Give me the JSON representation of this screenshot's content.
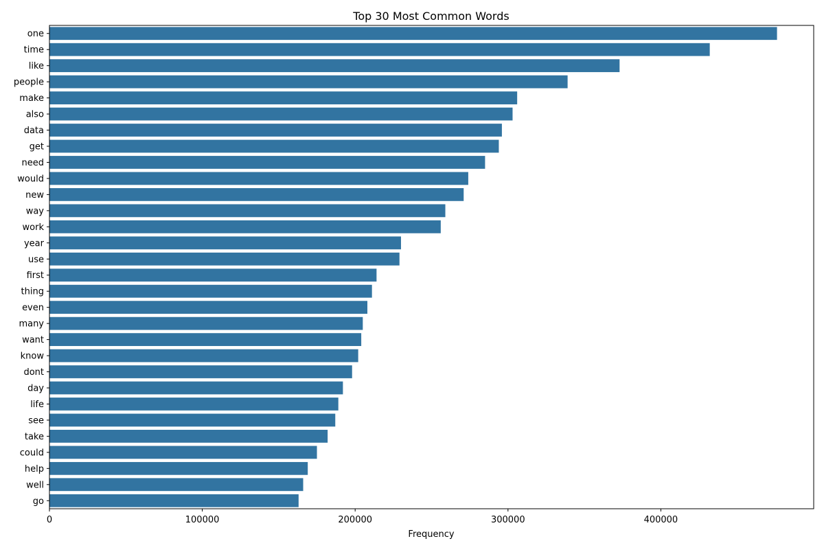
{
  "chart_data": {
    "type": "bar",
    "orientation": "horizontal",
    "title": "Top 30 Most Common Words",
    "xlabel": "Frequency",
    "ylabel": "",
    "xlim": [
      0,
      500000
    ],
    "xticks": [
      0,
      100000,
      200000,
      300000,
      400000
    ],
    "xtick_labels": [
      "0",
      "100000",
      "200000",
      "300000",
      "400000"
    ],
    "grid": false,
    "legend": "none",
    "bar_color": "#3274a1",
    "categories": [
      "one",
      "time",
      "like",
      "people",
      "make",
      "also",
      "data",
      "get",
      "need",
      "would",
      "new",
      "way",
      "work",
      "year",
      "use",
      "first",
      "thing",
      "even",
      "many",
      "want",
      "know",
      "dont",
      "day",
      "life",
      "see",
      "take",
      "could",
      "help",
      "well",
      "go"
    ],
    "values": [
      476000,
      432000,
      373000,
      339000,
      306000,
      303000,
      296000,
      294000,
      285000,
      274000,
      271000,
      259000,
      256000,
      230000,
      229000,
      214000,
      211000,
      208000,
      205000,
      204000,
      202000,
      198000,
      192000,
      189000,
      187000,
      182000,
      175000,
      169000,
      166000,
      163000
    ]
  }
}
